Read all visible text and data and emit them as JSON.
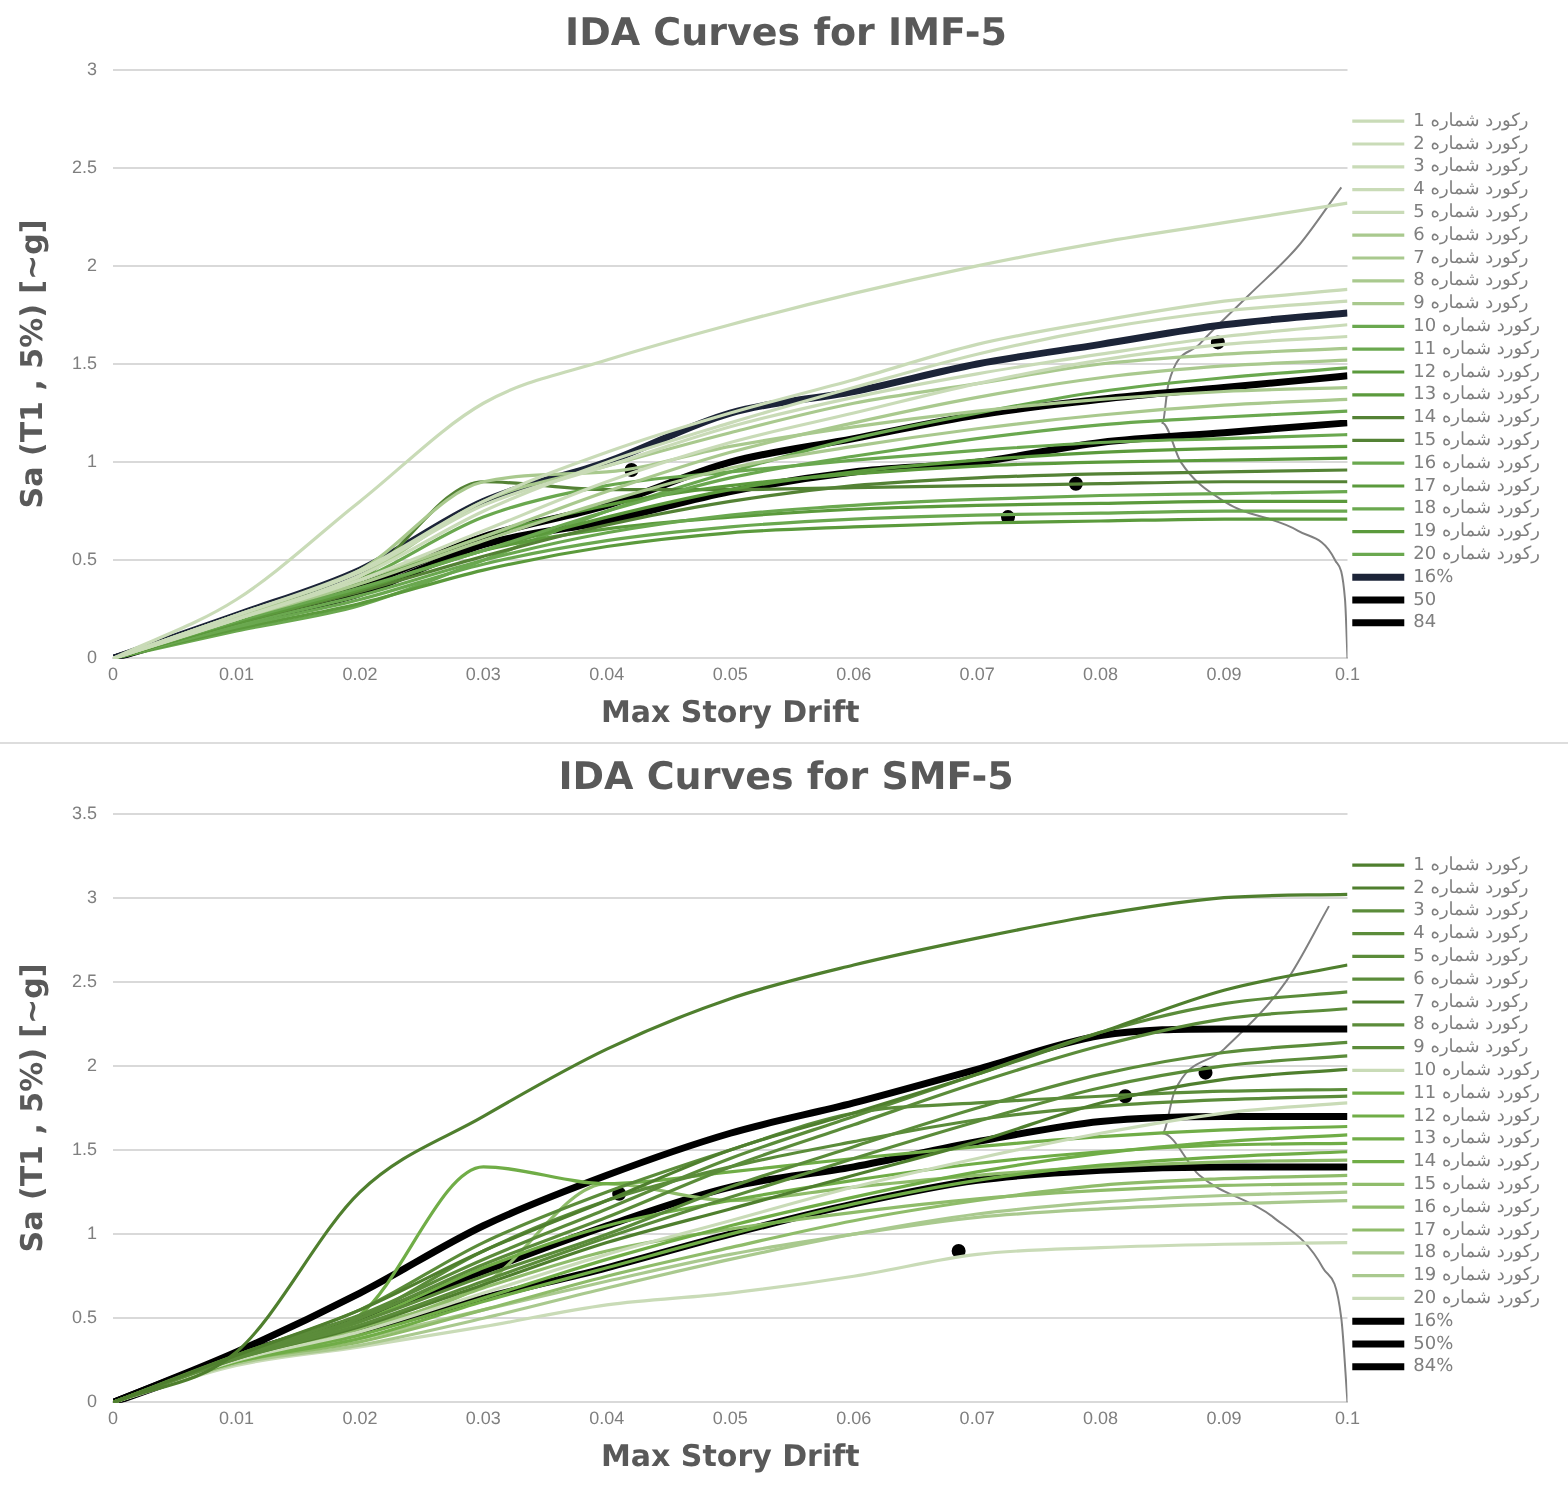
{
  "chart_data": [
    {
      "type": "line",
      "title": "IDA Curves for IMF-5",
      "xlabel": "Max Story Drift",
      "ylabel": "Sa (T1 , 5%) [~g]",
      "x": [
        0,
        0.01,
        0.02,
        0.03,
        0.04,
        0.05,
        0.06,
        0.07,
        0.08,
        0.09,
        0.1
      ],
      "xlim": [
        0,
        0.1
      ],
      "xticks": [
        0,
        0.01,
        0.02,
        0.03,
        0.04,
        0.05,
        0.06,
        0.07,
        0.08,
        0.09,
        0.1
      ],
      "ylim": [
        0,
        3
      ],
      "yticks": [
        0,
        0.5,
        1,
        1.5,
        2,
        2.5,
        3
      ],
      "grid": "y",
      "legend": "right",
      "marker": "none",
      "line_style": "solid",
      "series": [
        {
          "name": "رکورد شماره 1",
          "color": "#c9dbb7",
          "values": [
            0,
            0.3,
            0.8,
            1.3,
            1.52,
            1.7,
            1.86,
            2.0,
            2.12,
            2.22,
            2.32
          ]
        },
        {
          "name": "رکورد شماره 2",
          "color": "#c9dbb7",
          "values": [
            0,
            0.22,
            0.45,
            0.8,
            1.05,
            1.25,
            1.42,
            1.6,
            1.72,
            1.82,
            1.88
          ]
        },
        {
          "name": "رکورد شماره 3",
          "color": "#c9dbb7",
          "values": [
            0,
            0.2,
            0.42,
            0.75,
            1.0,
            1.2,
            1.38,
            1.55,
            1.68,
            1.77,
            1.82
          ]
        },
        {
          "name": "رکورد شماره 4",
          "color": "#c9dbb7",
          "values": [
            0,
            0.22,
            0.44,
            0.78,
            0.98,
            1.18,
            1.33,
            1.45,
            1.55,
            1.64,
            1.7
          ]
        },
        {
          "name": "رکورد شماره 5",
          "color": "#c9dbb7",
          "values": [
            0,
            0.2,
            0.4,
            0.65,
            0.9,
            1.1,
            1.25,
            1.4,
            1.52,
            1.6,
            1.64
          ]
        },
        {
          "name": "رکورد شماره 6",
          "color": "#a9c98e",
          "values": [
            0,
            0.21,
            0.42,
            0.8,
            0.98,
            1.15,
            1.3,
            1.4,
            1.5,
            1.55,
            1.58
          ]
        },
        {
          "name": "رکورد شماره 7",
          "color": "#a9c98e",
          "values": [
            0,
            0.2,
            0.4,
            0.62,
            0.85,
            1.05,
            1.2,
            1.33,
            1.43,
            1.49,
            1.52
          ]
        },
        {
          "name": "رکورد شماره 8",
          "color": "#a9c98e",
          "values": [
            0,
            0.22,
            0.45,
            0.9,
            0.95,
            1.08,
            1.18,
            1.26,
            1.32,
            1.36,
            1.38
          ]
        },
        {
          "name": "رکورد شماره 9",
          "color": "#a9c98e",
          "values": [
            0,
            0.2,
            0.38,
            0.6,
            0.8,
            0.97,
            1.08,
            1.17,
            1.24,
            1.29,
            1.32
          ]
        },
        {
          "name": "رکورد شماره 10",
          "color": "#6aa84f",
          "values": [
            0,
            0.19,
            0.36,
            0.55,
            0.75,
            0.92,
            1.03,
            1.12,
            1.19,
            1.23,
            1.26
          ]
        },
        {
          "name": "رکورد شماره 11",
          "color": "#6aa84f",
          "values": [
            0,
            0.2,
            0.4,
            0.72,
            0.88,
            0.95,
            1.01,
            1.06,
            1.1,
            1.12,
            1.14
          ]
        },
        {
          "name": "رکورد شماره 12",
          "color": "#5b9a3c",
          "values": [
            0,
            0.18,
            0.35,
            0.55,
            0.72,
            0.86,
            0.95,
            1.01,
            1.05,
            1.07,
            1.08
          ]
        },
        {
          "name": "رکورد شماره 13",
          "color": "#5b9a3c",
          "values": [
            0,
            0.2,
            0.38,
            0.62,
            0.78,
            0.88,
            0.94,
            0.98,
            1.0,
            1.01,
            1.02
          ]
        },
        {
          "name": "رکورد شماره 14",
          "color": "#548235",
          "values": [
            0,
            0.18,
            0.34,
            0.52,
            0.68,
            0.8,
            0.88,
            0.92,
            0.94,
            0.95,
            0.96
          ]
        },
        {
          "name": "رکورد شماره 15",
          "color": "#548235",
          "values": [
            0,
            0.2,
            0.4,
            0.9,
            0.86,
            0.86,
            0.87,
            0.88,
            0.89,
            0.9,
            0.9
          ]
        },
        {
          "name": "رکورد شماره 16",
          "color": "#6aa84f",
          "values": [
            0,
            0.17,
            0.32,
            0.5,
            0.64,
            0.73,
            0.78,
            0.81,
            0.83,
            0.84,
            0.85
          ]
        },
        {
          "name": "رکورد شماره 17",
          "color": "#5b9a3c",
          "values": [
            0,
            0.18,
            0.35,
            0.55,
            0.66,
            0.72,
            0.76,
            0.78,
            0.79,
            0.8,
            0.8
          ]
        },
        {
          "name": "رکورد شماره 18",
          "color": "#6aa84f",
          "values": [
            0,
            0.16,
            0.3,
            0.48,
            0.6,
            0.67,
            0.71,
            0.73,
            0.74,
            0.75,
            0.75
          ]
        },
        {
          "name": "رکورد شماره 19",
          "color": "#5b9a3c",
          "values": [
            0,
            0.15,
            0.28,
            0.45,
            0.57,
            0.64,
            0.67,
            0.69,
            0.7,
            0.71,
            0.71
          ]
        },
        {
          "name": "رکورد شماره 20",
          "color": "#6aa84f",
          "values": [
            0,
            0.14,
            0.27,
            0.5,
            0.75,
            0.95,
            1.12,
            1.25,
            1.36,
            1.43,
            1.48
          ]
        },
        {
          "name": "16%",
          "color": "#1c2438",
          "values": [
            0,
            0.22,
            0.45,
            0.8,
            1.0,
            1.25,
            1.36,
            1.5,
            1.6,
            1.7,
            1.76
          ]
        },
        {
          "name": "50",
          "color": "#000000",
          "values": [
            0,
            0.2,
            0.37,
            0.62,
            0.78,
            1.0,
            1.12,
            1.24,
            1.32,
            1.38,
            1.44
          ]
        },
        {
          "name": "84",
          "color": "#000000",
          "values": [
            0,
            0.18,
            0.33,
            0.58,
            0.7,
            0.85,
            0.95,
            1.0,
            1.1,
            1.15,
            1.2
          ]
        },
        {
          "color": "#808080",
          "x": [
            0.1,
            0.0998,
            0.099,
            0.096,
            0.09,
            0.0865,
            0.085,
            0.0855,
            0.088,
            0.092,
            0.096,
            0.0995
          ],
          "values": [
            0,
            0.3,
            0.5,
            0.65,
            0.8,
            1.0,
            1.2,
            1.4,
            1.6,
            1.85,
            2.1,
            2.4
          ]
        },
        {
          "type": "scatter",
          "marker": "circle",
          "color": "#000000",
          "x": [
            0.042,
            0.0725,
            0.078,
            0.0895
          ],
          "values": [
            0.96,
            0.72,
            0.89,
            1.61
          ]
        }
      ]
    },
    {
      "type": "line",
      "title": "IDA Curves for SMF-5",
      "xlabel": "Max Story Drift",
      "ylabel": "Sa (T1 , 5%) [~g]",
      "x": [
        0,
        0.01,
        0.02,
        0.03,
        0.04,
        0.05,
        0.06,
        0.07,
        0.08,
        0.09,
        0.1
      ],
      "xlim": [
        0,
        0.1
      ],
      "xticks": [
        0,
        0.01,
        0.02,
        0.03,
        0.04,
        0.05,
        0.06,
        0.07,
        0.08,
        0.09,
        0.1
      ],
      "ylim": [
        0,
        3.5
      ],
      "yticks": [
        0,
        0.5,
        1,
        1.5,
        2,
        2.5,
        3,
        3.5
      ],
      "grid": "y",
      "legend": "right",
      "marker": "none",
      "line_style": "solid",
      "series": [
        {
          "name": "رکورد شماره 1",
          "color": "#4f7f2e",
          "values": [
            0,
            0.3,
            1.25,
            1.7,
            2.1,
            2.4,
            2.6,
            2.76,
            2.9,
            3.0,
            3.02
          ]
        },
        {
          "name": "رکورد شماره 2",
          "color": "#4f7f2e",
          "values": [
            0,
            0.28,
            0.55,
            0.9,
            1.2,
            1.5,
            1.72,
            1.95,
            2.2,
            2.45,
            2.6
          ]
        },
        {
          "name": "رکورد شماره 3",
          "color": "#5b8c3a",
          "values": [
            0,
            0.28,
            0.52,
            0.85,
            1.15,
            1.45,
            1.7,
            1.95,
            2.2,
            2.37,
            2.44
          ]
        },
        {
          "name": "رکورد شماره 4",
          "color": "#5b8c3a",
          "values": [
            0,
            0.27,
            0.5,
            0.82,
            1.1,
            1.4,
            1.65,
            1.9,
            2.12,
            2.28,
            2.34
          ]
        },
        {
          "name": "رکورد شماره 5",
          "color": "#5b8c3a",
          "values": [
            0,
            0.27,
            0.48,
            0.75,
            1.0,
            1.28,
            1.52,
            1.75,
            1.95,
            2.08,
            2.14
          ]
        },
        {
          "name": "رکورد شماره 6",
          "color": "#5b8c3a",
          "values": [
            0,
            0.26,
            0.46,
            0.72,
            0.98,
            1.22,
            1.45,
            1.67,
            1.87,
            2.0,
            2.06
          ]
        },
        {
          "name": "رکورد شماره 7",
          "color": "#4f7f2e",
          "values": [
            0,
            0.26,
            0.45,
            0.7,
            0.95,
            1.15,
            1.35,
            1.55,
            1.78,
            1.92,
            1.98
          ]
        },
        {
          "name": "رکورد شماره 8",
          "color": "#5b8c3a",
          "values": [
            0,
            0.28,
            0.55,
            0.95,
            1.25,
            1.5,
            1.72,
            1.78,
            1.82,
            1.85,
            1.86
          ]
        },
        {
          "name": "رکورد شماره 9",
          "color": "#5b8c3a",
          "values": [
            0,
            0.27,
            0.5,
            0.9,
            1.2,
            1.4,
            1.55,
            1.68,
            1.76,
            1.8,
            1.82
          ]
        },
        {
          "name": "رکورد شماره 10",
          "color": "#c9dbb7",
          "values": [
            0,
            0.25,
            0.42,
            0.65,
            0.88,
            1.08,
            1.28,
            1.45,
            1.6,
            1.72,
            1.78
          ]
        },
        {
          "name": "رکورد شماره 11",
          "color": "#70ad47",
          "values": [
            0,
            0.27,
            0.52,
            1.4,
            1.3,
            1.37,
            1.45,
            1.52,
            1.58,
            1.62,
            1.64
          ]
        },
        {
          "name": "رکورد شماره 12",
          "color": "#70ad47",
          "values": [
            0,
            0.25,
            0.4,
            0.62,
            0.85,
            1.05,
            1.22,
            1.37,
            1.48,
            1.55,
            1.59
          ]
        },
        {
          "name": "رکورد شماره 13",
          "color": "#70ad47",
          "values": [
            0,
            0.26,
            0.48,
            0.8,
            1.05,
            1.2,
            1.32,
            1.42,
            1.49,
            1.53,
            1.54
          ]
        },
        {
          "name": "رکورد شماره 14",
          "color": "#70ad47",
          "values": [
            0,
            0.24,
            0.38,
            0.6,
            0.8,
            1.0,
            1.18,
            1.32,
            1.41,
            1.46,
            1.49
          ]
        },
        {
          "name": "رکورد شماره 15",
          "color": "#8fbc6a",
          "values": [
            0,
            0.25,
            0.44,
            0.7,
            1.3,
            1.2,
            1.28,
            1.35,
            1.4,
            1.43,
            1.44
          ]
        },
        {
          "name": "رکورد شماره 16",
          "color": "#8fbc6a",
          "values": [
            0,
            0.24,
            0.36,
            0.55,
            0.75,
            0.92,
            1.08,
            1.2,
            1.29,
            1.33,
            1.35
          ]
        },
        {
          "name": "رکورد شماره 17",
          "color": "#8fbc6a",
          "values": [
            0,
            0.25,
            0.42,
            0.68,
            0.9,
            1.03,
            1.13,
            1.21,
            1.26,
            1.29,
            1.3
          ]
        },
        {
          "name": "رکورد شماره 18",
          "color": "#a9c98e",
          "values": [
            0,
            0.23,
            0.34,
            0.5,
            0.68,
            0.85,
            1.0,
            1.12,
            1.19,
            1.23,
            1.25
          ]
        },
        {
          "name": "رکورد شماره 19",
          "color": "#a9c98e",
          "values": [
            0,
            0.24,
            0.38,
            0.55,
            0.72,
            0.88,
            1.0,
            1.1,
            1.15,
            1.18,
            1.2
          ]
        },
        {
          "name": "رکورد شماره 20",
          "color": "#c9dbb7",
          "values": [
            0,
            0.22,
            0.33,
            0.45,
            0.58,
            0.65,
            0.75,
            0.88,
            0.92,
            0.94,
            0.95
          ]
        },
        {
          "name": "16%",
          "color": "#000000",
          "values": [
            0,
            0.3,
            0.65,
            1.05,
            1.35,
            1.6,
            1.78,
            1.98,
            2.18,
            2.22,
            2.22
          ]
        },
        {
          "name": "50%",
          "color": "#000000",
          "values": [
            0,
            0.28,
            0.5,
            0.78,
            1.05,
            1.28,
            1.4,
            1.55,
            1.67,
            1.7,
            1.7
          ]
        },
        {
          "name": "84%",
          "color": "#000000",
          "values": [
            0,
            0.25,
            0.42,
            0.62,
            0.8,
            1.0,
            1.18,
            1.32,
            1.38,
            1.4,
            1.4
          ]
        },
        {
          "color": "#808080",
          "x": [
            0.1,
            0.0995,
            0.098,
            0.094,
            0.088,
            0.085,
            0.086,
            0.09,
            0.095,
            0.0985
          ],
          "values": [
            0,
            0.5,
            0.8,
            1.1,
            1.35,
            1.6,
            1.85,
            2.1,
            2.5,
            2.95
          ]
        },
        {
          "type": "scatter",
          "marker": "circle",
          "color": "#000000",
          "x": [
            0.041,
            0.0685,
            0.082,
            0.0885
          ],
          "values": [
            1.24,
            0.9,
            1.82,
            1.96
          ]
        }
      ]
    }
  ]
}
